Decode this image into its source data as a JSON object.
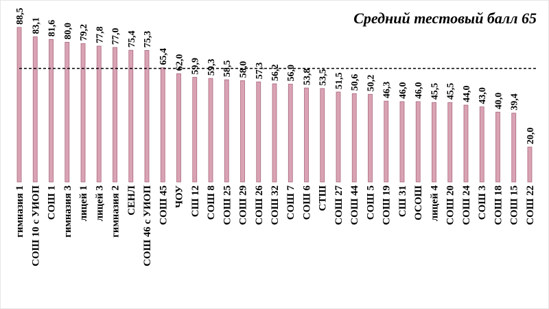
{
  "chart_data": {
    "type": "bar",
    "title": "Средний тестовый балл 65",
    "reference_line": 65,
    "categories": [
      "гимназия 1",
      "СОШ 10 с УИОП",
      "СОШ 1",
      "гимназия 3",
      "лицей 1",
      "лицей 3",
      "гимназия 2",
      "СЕНЛ",
      "СОШ 46 с УИОП",
      "СОШ 45",
      "ЧОУ",
      "СШ 12",
      "СОШ 8",
      "СОШ 25",
      "СОШ 29",
      "СОШ 26",
      "СОШ 32",
      "СОШ 7",
      "СОШ 6",
      "СТШ",
      "СОШ 27",
      "СОШ 44",
      "СОШ 5",
      "СОШ 19",
      "СШ 31",
      "ОСОШ",
      "лицей 4",
      "СОШ 20",
      "СОШ 24",
      "СОШ 3",
      "СОШ 18",
      "СОШ 15",
      "СОШ 22"
    ],
    "values": [
      88.5,
      83.1,
      81.6,
      80.0,
      79.2,
      77.8,
      77.0,
      75.4,
      75.3,
      65.4,
      62.0,
      59.9,
      59.3,
      58.5,
      58.0,
      57.3,
      56.2,
      56.0,
      53.8,
      53.5,
      51.5,
      50.6,
      50.2,
      46.3,
      46.0,
      46.0,
      45.5,
      45.5,
      44.0,
      43.0,
      40.0,
      39.4,
      20.0
    ],
    "value_labels": [
      "88,5",
      "83,1",
      "81,6",
      "80,0",
      "79,2",
      "77,8",
      "77,0",
      "75,4",
      "75,3",
      "65,4",
      "62,0",
      "59,9",
      "59,3",
      "58,5",
      "58,0",
      "57,3",
      "56,2",
      "56,0",
      "53,8",
      "53,5",
      "51,5",
      "50,6",
      "50,2",
      "46,3",
      "46,0",
      "46,0",
      "45,5",
      "45,5",
      "44,0",
      "43,0",
      "40,0",
      "39,4",
      "20,0"
    ],
    "color": "#d9a3b4",
    "ylim": [
      0,
      90
    ]
  }
}
